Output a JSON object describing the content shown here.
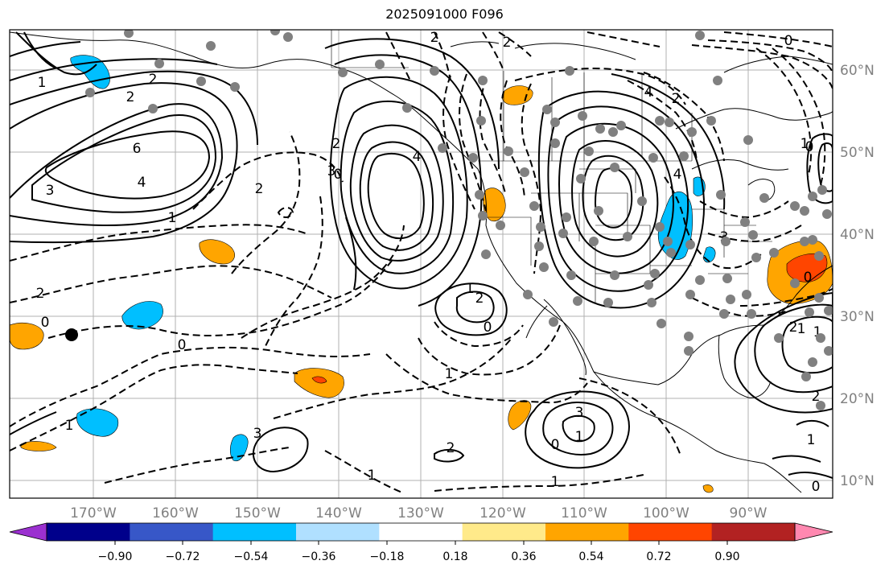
{
  "title": "2025091000 F096",
  "map": {
    "lon_labels": [
      "170°W",
      "160°W",
      "150°W",
      "140°W",
      "130°W",
      "120°W",
      "110°W",
      "100°W",
      "90°W"
    ],
    "lat_labels": [
      "60°N",
      "50°N",
      "40°N",
      "30°N",
      "20°N",
      "10°N"
    ],
    "contour_labels": {
      "solid": [
        "1",
        "2",
        "2",
        "6",
        "4",
        "3",
        "1",
        "2",
        "3",
        "4",
        "1",
        "2",
        "3",
        "1",
        "2",
        "1",
        "2",
        "3",
        "2",
        "1",
        "0",
        "0"
      ],
      "dashed": [
        "2",
        "0",
        "0",
        "1",
        "1",
        "2",
        "4",
        "2",
        "3",
        "4",
        "0",
        "1",
        "1",
        "2",
        "0",
        "0",
        "1",
        "2",
        "1",
        "0",
        "0"
      ]
    },
    "colors": {
      "solid_contour": "#000000",
      "dashed_contour": "#000000",
      "station_dot": "#7f7f7f",
      "grid": "#b0b0b0",
      "label": "#808080"
    }
  },
  "colorbar": {
    "ticks": [
      "−0.90",
      "−0.72",
      "−0.54",
      "−0.36",
      "−0.18",
      "0.18",
      "0.36",
      "0.54",
      "0.72",
      "0.90"
    ],
    "colors": [
      "#9b30d0",
      "#00008b",
      "#3757c8",
      "#00bfff",
      "#b0e0ff",
      "#ffffff",
      "#ffea8a",
      "#ffa500",
      "#ff4500",
      "#b22222",
      "#ff88b0"
    ]
  }
}
